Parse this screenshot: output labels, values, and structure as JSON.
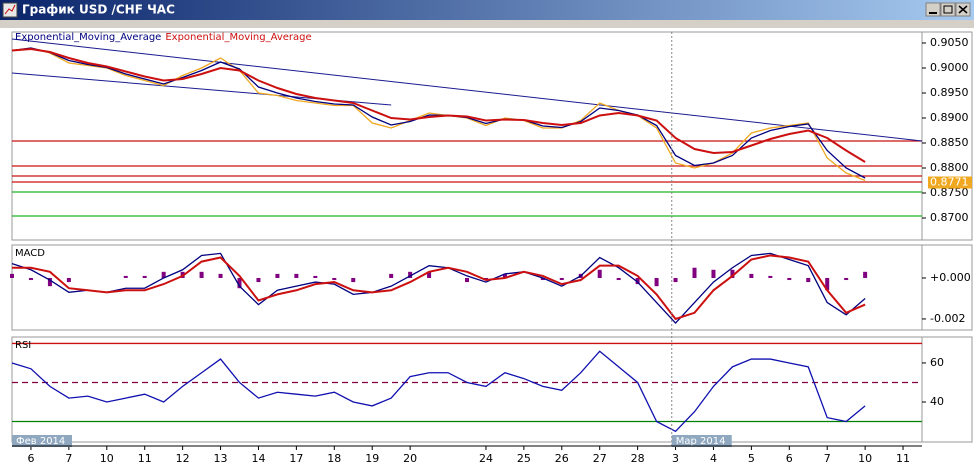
{
  "window": {
    "title": "График USD /CHF  ЧАС"
  },
  "x_axis": {
    "xlim": [
      0,
      240
    ],
    "x": [
      0,
      5,
      10,
      15,
      20,
      25,
      30,
      35,
      40,
      45,
      50,
      55,
      60,
      65,
      70,
      75,
      80,
      85,
      90,
      95,
      100,
      105,
      110,
      115,
      120,
      125,
      130,
      135,
      140,
      145,
      150,
      155,
      160,
      165,
      170,
      175,
      180,
      185,
      190,
      195,
      200,
      205,
      210,
      215,
      220,
      225
    ],
    "xticks": [
      {
        "value": 5,
        "label": "6"
      },
      {
        "value": 15,
        "label": "7"
      },
      {
        "value": 25,
        "label": "10"
      },
      {
        "value": 35,
        "label": "11"
      },
      {
        "value": 45,
        "label": "12"
      },
      {
        "value": 55,
        "label": "13"
      },
      {
        "value": 65,
        "label": "14"
      },
      {
        "value": 75,
        "label": "17"
      },
      {
        "value": 85,
        "label": "18"
      },
      {
        "value": 95,
        "label": "19"
      },
      {
        "value": 105,
        "label": "20"
      },
      {
        "value": 125,
        "label": "24"
      },
      {
        "value": 135,
        "label": "25"
      },
      {
        "value": 145,
        "label": "26"
      },
      {
        "value": 155,
        "label": "27"
      },
      {
        "value": 165,
        "label": "28"
      },
      {
        "value": 175,
        "label": "3"
      },
      {
        "value": 185,
        "label": "4"
      },
      {
        "value": 195,
        "label": "5"
      },
      {
        "value": 205,
        "label": "6"
      },
      {
        "value": 215,
        "label": "7"
      },
      {
        "value": 225,
        "label": "10"
      },
      {
        "value": 235,
        "label": "11"
      }
    ],
    "period_labels": [
      {
        "value": 0,
        "label": "Фев 2014"
      },
      {
        "value": 174,
        "label": "Мар 2014"
      }
    ]
  },
  "chart_data": [
    {
      "type": "line",
      "ylim": [
        0.8656,
        0.9072
      ],
      "yticks": [
        {
          "value": 0.905,
          "label": "0.9050"
        },
        {
          "value": 0.9,
          "label": "0.9000"
        },
        {
          "value": 0.895,
          "label": "0.8950"
        },
        {
          "value": 0.89,
          "label": "0.8900"
        },
        {
          "value": 0.885,
          "label": "0.8850"
        },
        {
          "value": 0.88,
          "label": "0.8800"
        },
        {
          "value": 0.875,
          "label": "0.8750"
        },
        {
          "value": 0.87,
          "label": "0.8700"
        }
      ],
      "series": [
        {
          "color": "#f0a820",
          "values": [
            0.9035,
            0.904,
            0.903,
            0.901,
            0.9005,
            0.9,
            0.8985,
            0.8975,
            0.8965,
            0.8985,
            0.9,
            0.902,
            0.8995,
            0.895,
            0.8945,
            0.8935,
            0.893,
            0.8925,
            0.8925,
            0.889,
            0.888,
            0.8895,
            0.891,
            0.8905,
            0.89,
            0.8885,
            0.89,
            0.8895,
            0.888,
            0.888,
            0.8895,
            0.893,
            0.8915,
            0.8905,
            0.888,
            0.881,
            0.88,
            0.881,
            0.883,
            0.887,
            0.888,
            0.8885,
            0.889,
            0.882,
            0.879,
            0.8775
          ]
        },
        {
          "name": "Exponential_Moving_Average",
          "color": "#000080",
          "values": [
            0.9035,
            0.904,
            0.9031,
            0.9015,
            0.9007,
            0.9001,
            0.8988,
            0.8978,
            0.8968,
            0.8981,
            0.8995,
            0.9012,
            0.8998,
            0.8962,
            0.895,
            0.894,
            0.8933,
            0.8928,
            0.8926,
            0.8902,
            0.8886,
            0.8893,
            0.8906,
            0.8905,
            0.8901,
            0.8889,
            0.8898,
            0.8896,
            0.8884,
            0.8881,
            0.8893,
            0.892,
            0.8915,
            0.8906,
            0.8885,
            0.8825,
            0.8805,
            0.881,
            0.8825,
            0.886,
            0.8875,
            0.8883,
            0.8888,
            0.8835,
            0.88,
            0.878
          ]
        },
        {
          "name": "Exponential_Moving_Average",
          "color": "#cc1010",
          "values": [
            0.9035,
            0.9038,
            0.9032,
            0.902,
            0.901,
            0.9003,
            0.8993,
            0.8983,
            0.8975,
            0.8978,
            0.8988,
            0.9,
            0.8995,
            0.8975,
            0.896,
            0.8948,
            0.894,
            0.8935,
            0.893,
            0.8915,
            0.89,
            0.8897,
            0.8902,
            0.8905,
            0.8903,
            0.8895,
            0.8897,
            0.8896,
            0.889,
            0.8886,
            0.889,
            0.8905,
            0.891,
            0.8905,
            0.8895,
            0.886,
            0.8838,
            0.883,
            0.8832,
            0.8845,
            0.8858,
            0.8868,
            0.8875,
            0.886,
            0.8835,
            0.8812
          ]
        }
      ],
      "hlines": [
        {
          "value": 0.8854,
          "color": "#cc1010"
        },
        {
          "value": 0.8804,
          "color": "#cc1010"
        },
        {
          "value": 0.8784,
          "color": "#cc1010"
        },
        {
          "value": 0.8772,
          "color": "#cc1010"
        },
        {
          "value": 0.8752,
          "color": "#20b020"
        },
        {
          "value": 0.8704,
          "color": "#20b020"
        }
      ],
      "trendlines": [
        {
          "x": [
            0,
            240
          ],
          "y": [
            0.9058,
            0.8854
          ],
          "color": "#1a1a90"
        },
        {
          "x": [
            0,
            100
          ],
          "y": [
            0.899,
            0.8926
          ],
          "color": "#1a1a90"
        }
      ],
      "last_value": 0.8771,
      "last_color": "#f0a820"
    },
    {
      "type": "line",
      "title": "MACD",
      "ylim": [
        -0.00254,
        0.00161
      ],
      "yticks": [
        {
          "value": 0,
          "label": "+0.000"
        },
        {
          "value": -0.002,
          "label": "-0.002"
        }
      ],
      "series": [
        {
          "type": "bar",
          "color": "#800080",
          "values": [
            0.0002,
            -0.0001,
            -0.0004,
            -0.0002,
            0,
            0,
            0.0001,
            0.0001,
            0.0003,
            0.0003,
            0.0003,
            0.0002,
            -0.0005,
            -0.0002,
            0.0002,
            0.0002,
            0.0001,
            -0.0001,
            -0.0002,
            0,
            0.0002,
            0.0003,
            0.0003,
            0,
            -0.0002,
            -0.0001,
            0.0002,
            0,
            -0.0001,
            -0.0001,
            0.0002,
            0.0004,
            -0.0001,
            -0.0003,
            -0.0004,
            -0.0002,
            0.0005,
            0.0004,
            0.0004,
            0.0002,
            0.0001,
            -0.0001,
            -0.0002,
            -0.0006,
            -0.0001,
            0.0003
          ]
        },
        {
          "color": "#000080",
          "values": [
            0.0007,
            0.0004,
            -0.0001,
            -0.0007,
            -0.0006,
            -0.0007,
            -0.0005,
            -0.0005,
            0,
            0.0004,
            0.0011,
            0.0012,
            -0.0004,
            -0.0013,
            -0.0006,
            -0.0004,
            -0.0002,
            -0.0003,
            -0.0008,
            -0.0007,
            -0.0004,
            0.0001,
            0.0006,
            0.0005,
            0.0001,
            -0.0002,
            0.0002,
            0.0003,
            0,
            -0.0004,
            0.0001,
            0.001,
            0.0005,
            -0.0002,
            -0.0012,
            -0.0022,
            -0.0012,
            -0.0002,
            0.0005,
            0.0011,
            0.0012,
            0.0009,
            0.0006,
            -0.0012,
            -0.0018,
            -0.001
          ]
        },
        {
          "color": "#cc1010",
          "values": [
            0.0005,
            0.0005,
            0.0003,
            -0.0005,
            -0.0006,
            -0.0007,
            -0.0006,
            -0.0006,
            -0.0003,
            0.0001,
            0.0008,
            0.001,
            0.0001,
            -0.0011,
            -0.0008,
            -0.0006,
            -0.0003,
            -0.0002,
            -0.0006,
            -0.0007,
            -0.0006,
            -0.0002,
            0.0003,
            0.0005,
            0.0003,
            -0.0001,
            0,
            0.0003,
            0.0001,
            -0.0003,
            -0.0001,
            0.0006,
            0.0006,
            0.0001,
            -0.0008,
            -0.002,
            -0.0017,
            -0.0006,
            0.0001,
            0.0009,
            0.0011,
            0.001,
            0.0008,
            -0.0006,
            -0.0017,
            -0.0013
          ]
        }
      ]
    },
    {
      "type": "line",
      "title": "RSI",
      "ylim": [
        19.5,
        73.3
      ],
      "yticks": [
        60,
        40
      ],
      "series": [
        {
          "color": "#1010b0",
          "values": [
            60,
            57,
            48,
            42,
            43,
            40,
            42,
            44,
            40,
            48,
            55,
            62,
            50,
            42,
            45,
            44,
            43,
            45,
            40,
            38,
            42,
            53,
            55,
            55,
            50,
            48,
            55,
            52,
            48,
            46,
            55,
            66,
            58,
            50,
            30,
            25,
            35,
            48,
            58,
            62,
            62,
            60,
            58,
            32,
            30,
            38
          ]
        }
      ],
      "hlines": [
        {
          "value": 70,
          "color": "#cc1010"
        },
        {
          "value": 50,
          "color": "#800040",
          "style": "dashed"
        },
        {
          "value": 30,
          "color": "#008000"
        }
      ]
    }
  ]
}
